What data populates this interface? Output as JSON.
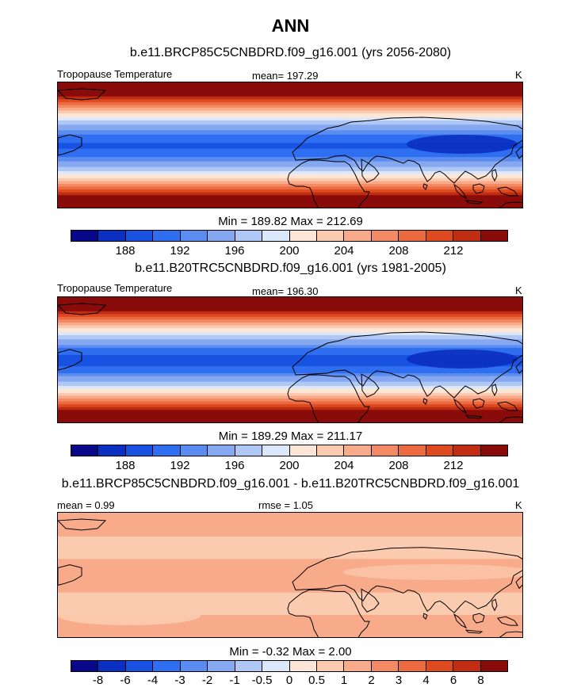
{
  "title": "ANN",
  "palette": [
    "#08088a",
    "#0b2fc0",
    "#1852e0",
    "#2f6ef0",
    "#5b8cf0",
    "#86a8f0",
    "#b0c8f6",
    "#dbe7fb",
    "#fde6d6",
    "#fbcbb0",
    "#f8ab8a",
    "#f48a63",
    "#ec6a40",
    "#dd4a20",
    "#c02d12",
    "#8a0c0a"
  ],
  "panels": [
    {
      "case_title": "b.e11.BRCP85C5CNBDRD.f09_g16.001 (yrs 2056-2080)",
      "variable": "Tropopause Temperature",
      "stat": "mean= 197.29",
      "units": "K",
      "minmax": "Min = 189.82 Max = 212.69",
      "ticks": [
        "188",
        "192",
        "196",
        "200",
        "204",
        "208",
        "212"
      ],
      "kind": "abs",
      "strength": 0.95
    },
    {
      "case_title": "b.e11.B20TRC5CNBDRD.f09_g16.001 (yrs 1981-2005)",
      "variable": "Tropopause Temperature",
      "stat": "mean= 196.30",
      "units": "K",
      "minmax": "Min = 189.29 Max = 211.17",
      "ticks": [
        "188",
        "192",
        "196",
        "200",
        "204",
        "208",
        "212"
      ],
      "kind": "abs",
      "strength": 1.05
    },
    {
      "case_title": "b.e11.BRCP85C5CNBDRD.f09_g16.001 - b.e11.B20TRC5CNBDRD.f09_g16.001",
      "variable": "mean =   0.99",
      "stat": "rmse =   1.05",
      "units": "K",
      "minmax": "Min =  -0.32 Max =   2.00",
      "ticks": [
        "-8",
        "-6",
        "-4",
        "-3",
        "-2",
        "-1",
        "-0.5",
        "0",
        "0.5",
        "1",
        "2",
        "3",
        "4",
        "6",
        "8"
      ],
      "kind": "diff",
      "strength": 1
    }
  ]
}
